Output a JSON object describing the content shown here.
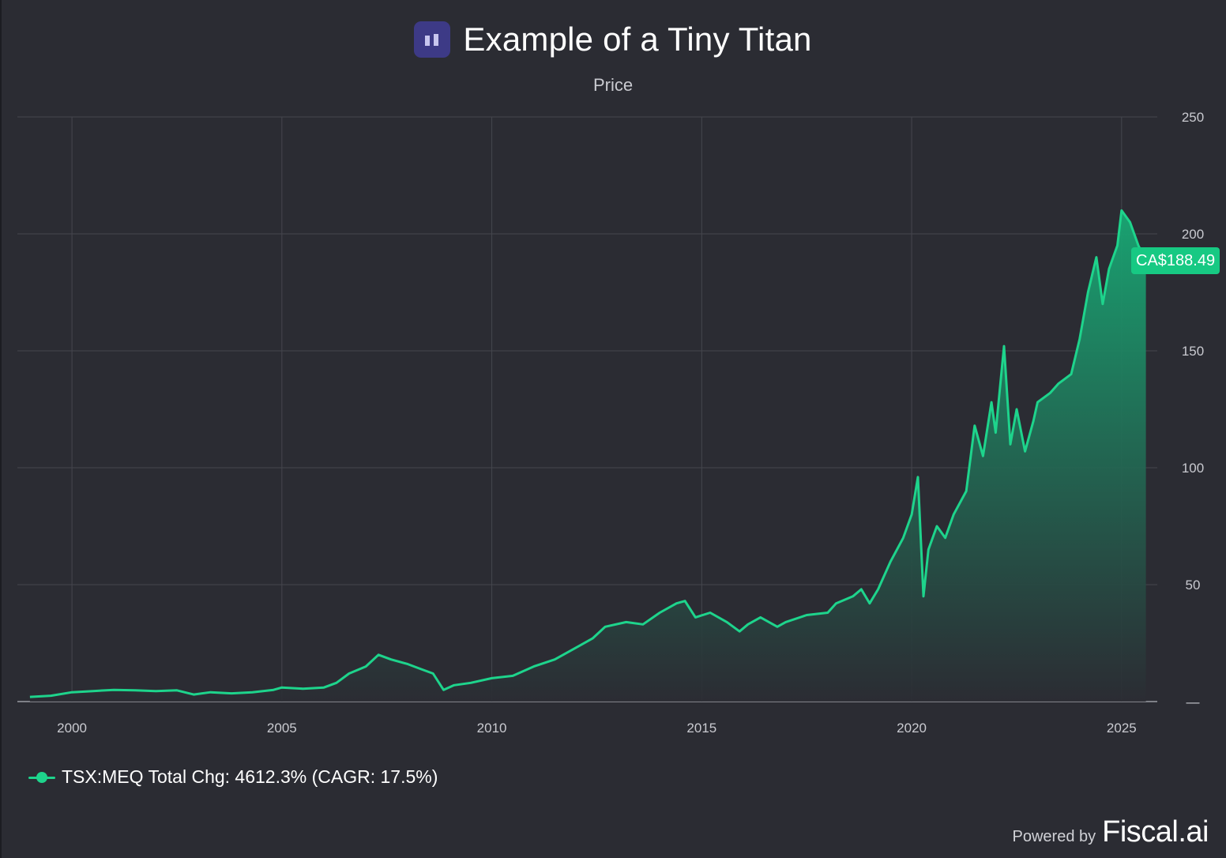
{
  "header": {
    "title": "Example of a Tiny Titan",
    "subtitle": "Price",
    "logo_icon": "bar-logo-icon"
  },
  "price_badge": "CA$188.49",
  "legend": {
    "label": "TSX:MEQ Total Chg: 4612.3% (CAGR: 17.5%)",
    "color": "#1ed48c"
  },
  "footer": {
    "powered_by": "Powered by",
    "brand": "Fiscal.ai"
  },
  "colors": {
    "background": "#2b2c33",
    "line": "#1ed48c",
    "area_top": "#169e6c",
    "area_bottom": "#2b2c33",
    "grid": "#45464e"
  },
  "chart_data": {
    "type": "area",
    "title": "Example of a Tiny Titan",
    "subtitle": "Price",
    "xlabel": "",
    "ylabel": "",
    "xlim": [
      1998.7,
      2025.85
    ],
    "ylim": [
      0,
      250
    ],
    "x_ticks": [
      2000,
      2005,
      2010,
      2015,
      2020,
      2025
    ],
    "y_ticks": [
      0,
      50,
      100,
      150,
      200,
      250
    ],
    "y_tick_labels": [
      "—",
      "50",
      "100",
      "150",
      "200",
      "250"
    ],
    "y_axis_side": "right",
    "grid": true,
    "legend_position": "bottom-left",
    "last_value_label": "CA$188.49",
    "series": [
      {
        "name": "TSX:MEQ Total Chg: 4612.3% (CAGR: 17.5%)",
        "x": [
          1999.0,
          1999.5,
          2000.0,
          2000.5,
          2001.0,
          2001.5,
          2002.0,
          2002.5,
          2002.9,
          2003.3,
          2003.8,
          2004.3,
          2004.8,
          2005.0,
          2005.5,
          2006.0,
          2006.3,
          2006.6,
          2007.0,
          2007.3,
          2007.6,
          2008.0,
          2008.3,
          2008.6,
          2008.85,
          2009.1,
          2009.5,
          2010.0,
          2010.5,
          2011.0,
          2011.5,
          2012.0,
          2012.4,
          2012.7,
          2013.2,
          2013.6,
          2014.0,
          2014.4,
          2014.6,
          2014.85,
          2015.2,
          2015.6,
          2015.9,
          2016.1,
          2016.4,
          2016.8,
          2017.0,
          2017.5,
          2018.0,
          2018.2,
          2018.6,
          2018.8,
          2019.0,
          2019.2,
          2019.5,
          2019.8,
          2020.0,
          2020.15,
          2020.28,
          2020.4,
          2020.6,
          2020.8,
          2021.0,
          2021.3,
          2021.5,
          2021.7,
          2021.9,
          2022.0,
          2022.2,
          2022.35,
          2022.5,
          2022.7,
          2022.9,
          2023.0,
          2023.3,
          2023.5,
          2023.8,
          2024.0,
          2024.2,
          2024.4,
          2024.55,
          2024.7,
          2024.9,
          2025.0,
          2025.2,
          2025.4,
          2025.58
        ],
        "values": [
          2,
          2.5,
          4,
          4.5,
          5,
          4.8,
          4.5,
          4.8,
          3,
          4,
          3.5,
          4,
          5,
          6,
          5.5,
          6,
          8,
          12,
          15,
          20,
          18,
          16,
          14,
          12,
          5,
          7,
          8,
          10,
          11,
          15,
          18,
          23,
          27,
          32,
          34,
          33,
          38,
          42,
          43,
          36,
          38,
          34,
          30,
          33,
          36,
          32,
          34,
          37,
          38,
          42,
          45,
          48,
          42,
          48,
          60,
          70,
          80,
          96,
          45,
          65,
          75,
          70,
          80,
          90,
          118,
          105,
          128,
          115,
          152,
          110,
          125,
          107,
          120,
          128,
          132,
          136,
          140,
          155,
          175,
          190,
          170,
          185,
          195,
          210,
          205,
          195,
          188.49
        ]
      }
    ]
  }
}
